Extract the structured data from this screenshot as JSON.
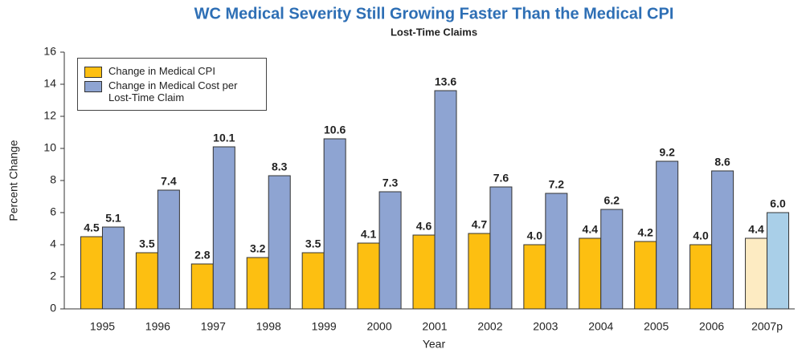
{
  "chart_data": {
    "type": "bar",
    "title": "WC Medical Severity Still Growing Faster Than the Medical CPI",
    "subtitle": "Lost-Time Claims",
    "x_label": "Year",
    "y_label": "Percent Change",
    "categories": [
      "1995",
      "1996",
      "1997",
      "1998",
      "1999",
      "2000",
      "2001",
      "2002",
      "2003",
      "2004",
      "2005",
      "2006",
      "2007p"
    ],
    "series": [
      {
        "name": "Change in Medical CPI",
        "color": "#fdbf11",
        "colors": [
          "#fdbf11",
          "#fdbf11",
          "#fdbf11",
          "#fdbf11",
          "#fdbf11",
          "#fdbf11",
          "#fdbf11",
          "#fdbf11",
          "#fdbf11",
          "#fdbf11",
          "#fdbf11",
          "#fdbf11",
          "#fdebc2"
        ],
        "values": [
          4.5,
          3.5,
          2.8,
          3.2,
          3.5,
          4.1,
          4.6,
          4.7,
          4,
          4.4,
          4.2,
          4,
          4.4
        ],
        "value_labels": [
          "4.5",
          "3.5",
          "2.8",
          "3.2",
          "3.5",
          "4.1",
          "4.6",
          "4.7",
          "4.0",
          "4.4",
          "4.2",
          "4.0",
          "4.4"
        ]
      },
      {
        "name": "Change in Medical Cost per Lost-Time Claim",
        "color": "#8ea4d2",
        "colors": [
          "#8ea4d2",
          "#8ea4d2",
          "#8ea4d2",
          "#8ea4d2",
          "#8ea4d2",
          "#8ea4d2",
          "#8ea4d2",
          "#8ea4d2",
          "#8ea4d2",
          "#8ea4d2",
          "#8ea4d2",
          "#8ea4d2",
          "#a9cfe8"
        ],
        "values": [
          5.1,
          7.4,
          10.1,
          8.3,
          10.6,
          7.3,
          13.6,
          7.6,
          7.2,
          6.2,
          9.2,
          8.6,
          6
        ],
        "value_labels": [
          "5.1",
          "7.4",
          "10.1",
          "8.3",
          "10.6",
          "7.3",
          "13.6",
          "7.6",
          "7.2",
          "6.2",
          "9.2",
          "8.6",
          "6.0"
        ]
      }
    ],
    "ylim": [
      0,
      16
    ],
    "yticks": [
      0,
      2,
      4,
      6,
      8,
      10,
      12,
      14,
      16
    ],
    "grid": false,
    "legend": "upper left"
  }
}
